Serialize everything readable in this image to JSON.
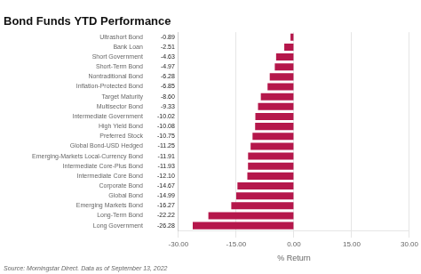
{
  "chart_data": {
    "type": "bar",
    "orientation": "horizontal",
    "title": "Bond Funds YTD Performance",
    "categories": [
      "Long Government",
      "Long-Term Bond",
      "Emerging Markets Bond",
      "Global Bond",
      "Corporate Bond",
      "Intermediate Core Bond",
      "Intermediate Core-Plus Bond",
      "Emerging-Markets Local-Currency Bond",
      "Global Bond-USD Hedged",
      "Preferred Stock",
      "High Yield Bond",
      "Intermediate Government",
      "Multisector Bond",
      "Target Maturity",
      "Inflation-Protected Bond",
      "Nontraditional Bond",
      "Short-Term Bond",
      "Short Government",
      "Bank Loan",
      "Ultrashort Bond"
    ],
    "values": [
      -26.28,
      -22.22,
      -16.27,
      -14.99,
      -14.67,
      -12.1,
      -11.93,
      -11.91,
      -11.25,
      -10.75,
      -10.08,
      -10.02,
      -9.33,
      -8.6,
      -6.85,
      -6.28,
      -4.97,
      -4.63,
      -2.51,
      -0.89
    ],
    "value_labels": [
      "-26.28",
      "-22.22",
      "-16.27",
      "-14.99",
      "-14.67",
      "-12.10",
      "-11.93",
      "-11.91",
      "-11.25",
      "-10.75",
      "-10.08",
      "-10.02",
      "-9.33",
      "-8.60",
      "-6.85",
      "-6.28",
      "-4.97",
      "-4.63",
      "-2.51",
      "-0.89"
    ],
    "data_labels": true,
    "color": "#b5174b",
    "xlabel": "% Return",
    "xlim": [
      -30,
      30
    ],
    "xticks": [
      {
        "value": -30,
        "label": "-30.00"
      },
      {
        "value": -15,
        "label": "-15.00"
      },
      {
        "value": 0,
        "label": "0.00"
      },
      {
        "value": 15,
        "label": "15.00"
      },
      {
        "value": 30,
        "label": "30.00"
      }
    ],
    "grid": true,
    "annotations": [
      "Source: Morningstar Direct. Data as of September 13, 2022"
    ]
  }
}
